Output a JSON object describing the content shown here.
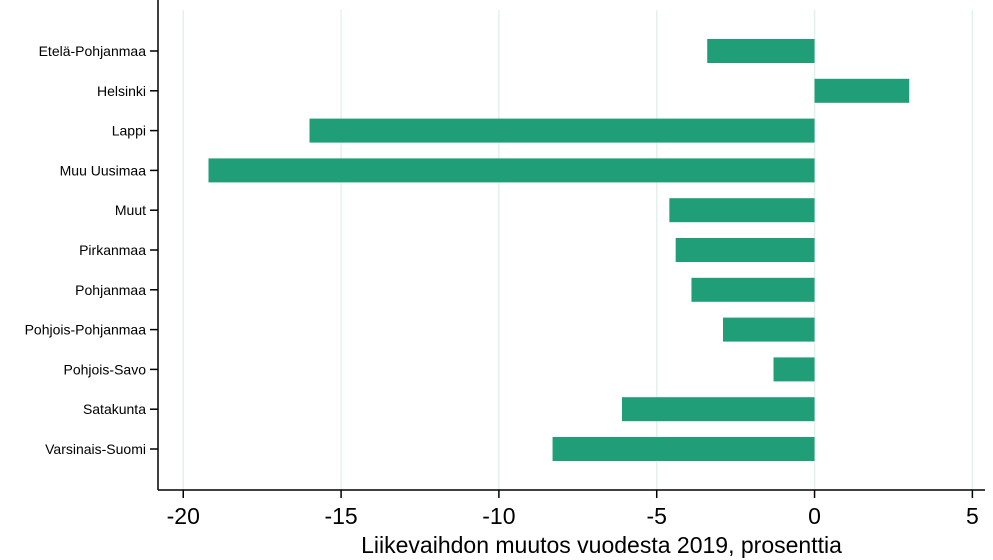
{
  "chart_data": {
    "type": "bar",
    "orientation": "horizontal",
    "categories": [
      "Etelä-Pohjanmaa",
      "Helsinki",
      "Lappi",
      "Muu Uusimaa",
      "Muut",
      "Pirkanmaa",
      "Pohjanmaa",
      "Pohjois-Pohjanmaa",
      "Pohjois-Savo",
      "Satakunta",
      "Varsinais-Suomi"
    ],
    "values": [
      -3.4,
      3.0,
      -16.0,
      -19.2,
      -4.6,
      -4.4,
      -3.9,
      -2.9,
      -1.3,
      -6.1,
      -8.3
    ],
    "xlabel": "Liikevaihdon muutos vuodesta 2019, prosenttia",
    "xlim": [
      -20.8,
      5.4
    ],
    "xticks": [
      -20,
      -15,
      -10,
      -5,
      0,
      5
    ],
    "grid": "vertical",
    "colors": {
      "bar": "#1f9e78",
      "grid": "#e3f1ee",
      "axis": "#000000"
    }
  }
}
